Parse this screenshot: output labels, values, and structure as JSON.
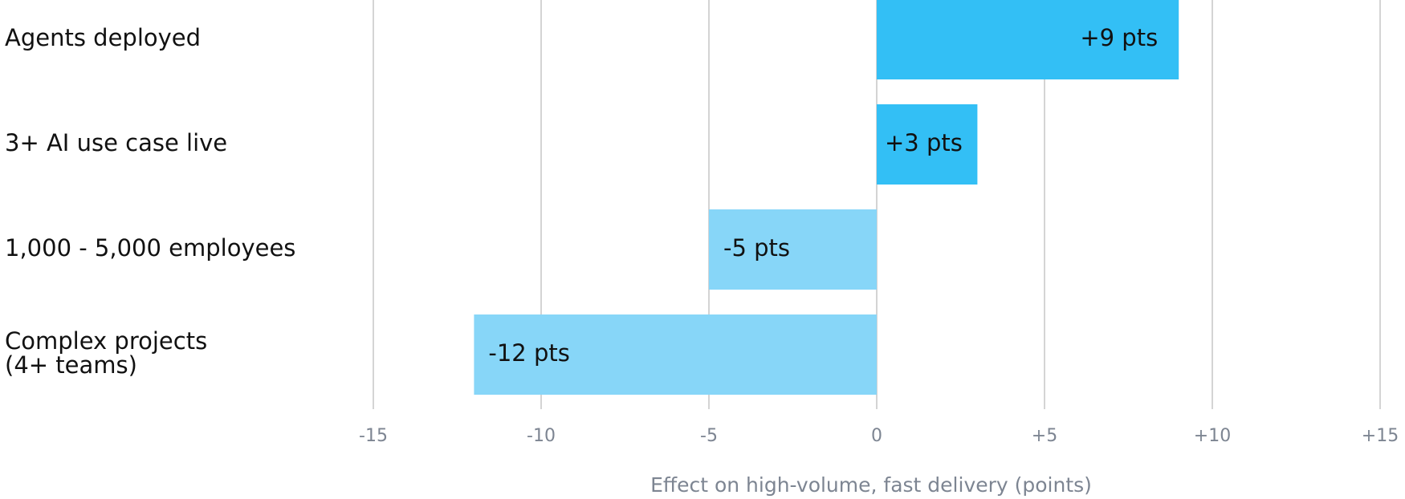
{
  "chart_data": {
    "type": "bar",
    "orientation": "horizontal",
    "x_label": "Effect on high-volume, fast delivery (points)",
    "categories": [
      "Agents deployed",
      "3+ AI use case live",
      "1,000 - 5,000 employees",
      "Complex projects\n(4+ teams)"
    ],
    "values": [
      9,
      3,
      -5,
      -12
    ],
    "value_labels": [
      "+9 pts",
      "+3 pts",
      "-5 pts",
      "-12 pts"
    ],
    "colors": [
      "#33bff5",
      "#33bff5",
      "#87d6f8",
      "#87d6f8"
    ],
    "xlim": [
      -15,
      15
    ],
    "xticks": [
      {
        "value": -15,
        "label": "-15"
      },
      {
        "value": -10,
        "label": "-10"
      },
      {
        "value": -5,
        "label": "-5"
      },
      0,
      {
        "value": 5,
        "label": "+5"
      },
      {
        "value": 10,
        "label": "+10"
      },
      {
        "value": 15,
        "label": "+15"
      }
    ],
    "grid": true
  }
}
